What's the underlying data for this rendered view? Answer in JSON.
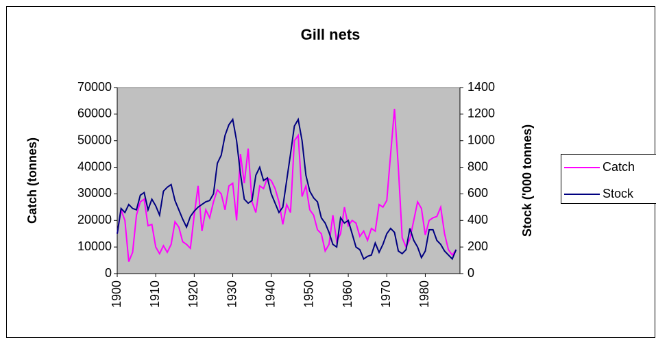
{
  "chart_data": {
    "type": "line",
    "title": "Gill nets",
    "y_label": "Catch (tonnes)",
    "y2_label": "Stock ('000 tonnes)",
    "x": [
      1900,
      1901,
      1902,
      1903,
      1904,
      1905,
      1906,
      1907,
      1908,
      1909,
      1910,
      1911,
      1912,
      1913,
      1914,
      1915,
      1916,
      1917,
      1918,
      1919,
      1920,
      1921,
      1922,
      1923,
      1924,
      1925,
      1926,
      1927,
      1928,
      1929,
      1930,
      1931,
      1932,
      1933,
      1934,
      1935,
      1936,
      1937,
      1938,
      1939,
      1940,
      1941,
      1942,
      1943,
      1944,
      1945,
      1946,
      1947,
      1948,
      1949,
      1950,
      1951,
      1952,
      1953,
      1954,
      1955,
      1956,
      1957,
      1958,
      1959,
      1960,
      1961,
      1962,
      1963,
      1964,
      1965,
      1966,
      1967,
      1968,
      1969,
      1970,
      1971,
      1972,
      1973,
      1974,
      1975,
      1976,
      1977,
      1978,
      1979,
      1980,
      1981,
      1982,
      1983,
      1984,
      1985,
      1986,
      1987,
      1988
    ],
    "xlim": [
      1900,
      1989
    ],
    "xticks": [
      1900,
      1910,
      1920,
      1930,
      1940,
      1950,
      1960,
      1970,
      1980
    ],
    "ylim": [
      0,
      70000
    ],
    "yticks": [
      0,
      10000,
      20000,
      30000,
      40000,
      50000,
      60000,
      70000
    ],
    "y2lim": [
      0,
      1400
    ],
    "y2ticks": [
      0,
      200,
      400,
      600,
      800,
      1000,
      1200,
      1400
    ],
    "plot_background": "#c0c0c0",
    "series": [
      {
        "name": "Catch",
        "color": "#ff00ff",
        "values": [
          15000,
          24000,
          20000,
          4500,
          8000,
          22000,
          27000,
          28000,
          18000,
          18500,
          10000,
          7500,
          10500,
          8000,
          11000,
          19500,
          17500,
          12000,
          11000,
          9500,
          22000,
          33000,
          16000,
          24000,
          21000,
          27000,
          31500,
          30000,
          24000,
          33000,
          34000,
          20000,
          45000,
          34000,
          47000,
          27000,
          23000,
          33000,
          32000,
          36000,
          35000,
          32000,
          27000,
          18500,
          26000,
          23000,
          50000,
          52000,
          29000,
          33000,
          24000,
          22000,
          16500,
          15000,
          8500,
          11000,
          22000,
          12000,
          15000,
          25000,
          18000,
          20000,
          19000,
          14000,
          16000,
          12500,
          17000,
          16000,
          26000,
          25000,
          27500,
          45000,
          62000,
          40000,
          13500,
          10000,
          13000,
          20000,
          27000,
          24500,
          14500,
          20000,
          21000,
          21500,
          25000,
          15000,
          9000,
          7000,
          9000
        ]
      },
      {
        "name": "Stock",
        "color": "#000080",
        "axis": "y2",
        "values": [
          300,
          490,
          460,
          520,
          490,
          480,
          590,
          610,
          480,
          560,
          510,
          440,
          620,
          650,
          670,
          550,
          480,
          410,
          350,
          430,
          470,
          500,
          520,
          540,
          550,
          600,
          830,
          890,
          1040,
          1120,
          1160,
          1000,
          750,
          560,
          530,
          550,
          740,
          800,
          700,
          720,
          600,
          530,
          460,
          500,
          700,
          900,
          1110,
          1160,
          1000,
          740,
          620,
          570,
          540,
          420,
          380,
          310,
          220,
          200,
          420,
          380,
          400,
          300,
          200,
          180,
          110,
          130,
          140,
          230,
          160,
          220,
          300,
          340,
          310,
          170,
          150,
          180,
          340,
          250,
          200,
          120,
          170,
          330,
          330,
          250,
          220,
          170,
          140,
          110,
          180
        ]
      }
    ]
  }
}
